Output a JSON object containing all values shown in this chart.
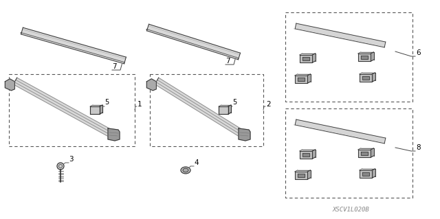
{
  "bg_color": "#ffffff",
  "line_color": "#444444",
  "dashed_color": "#555555",
  "label_color": "#000000",
  "fig_width": 6.4,
  "fig_height": 3.19,
  "dpi": 100,
  "watermark": "XSCV1L020B",
  "gray_dark": "#333333",
  "gray_mid": "#777777",
  "gray_light": "#bbbbbb",
  "gray_fill": "#cccccc"
}
